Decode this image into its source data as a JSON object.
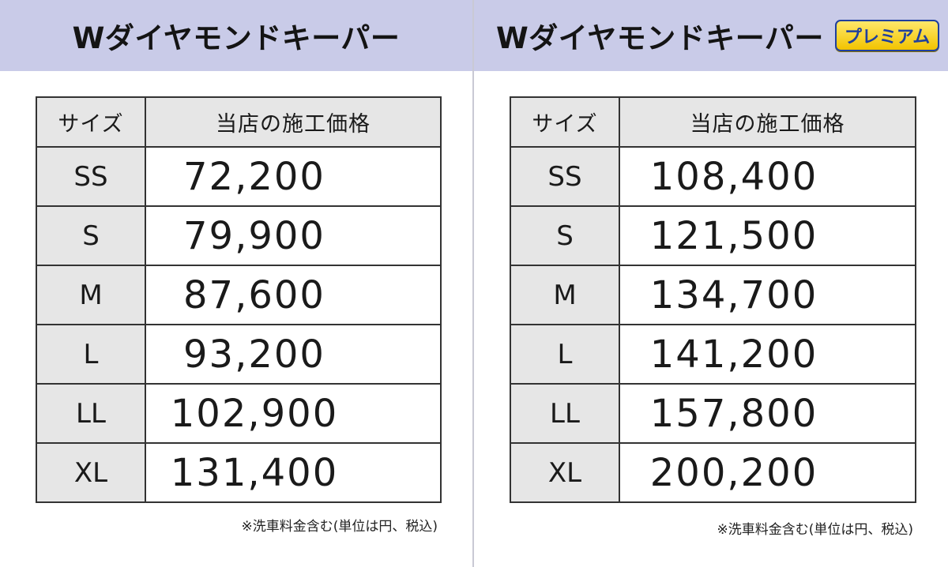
{
  "left_panel": {
    "title": "Wダイヤモンドキーパー",
    "badge": "",
    "header_size": "サイズ",
    "header_price": "当店の施工価格",
    "rows": [
      {
        "size": "SS",
        "price": "72,200"
      },
      {
        "size": "S",
        "price": "79,900"
      },
      {
        "size": "M",
        "price": "87,600"
      },
      {
        "size": "L",
        "price": "93,200"
      },
      {
        "size": "LL",
        "price": "102,900"
      },
      {
        "size": "XL",
        "price": "131,400"
      }
    ],
    "note": "※洗車料金含む(単位は円、税込)"
  },
  "right_panel": {
    "title": "Wダイヤモンドキーパー",
    "badge": "プレミアム",
    "header_size": "サイズ",
    "header_price": "当店の施工価格",
    "rows": [
      {
        "size": "SS",
        "price": "108,400"
      },
      {
        "size": "S",
        "price": "121,500"
      },
      {
        "size": "M",
        "price": "134,700"
      },
      {
        "size": "L",
        "price": "141,200"
      },
      {
        "size": "LL",
        "price": "157,800"
      },
      {
        "size": "XL",
        "price": "200,200"
      }
    ],
    "note": "※洗車料金含む(単位は円、税込)"
  },
  "colors": {
    "header_bg": "#c9cbe8",
    "cell_gray": "#e6e6e6",
    "badge_yellow": "#f2c300",
    "badge_blue": "#1f3f9e"
  }
}
